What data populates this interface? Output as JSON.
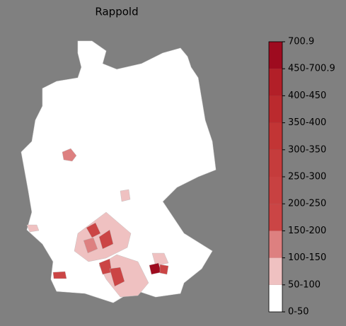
{
  "map": {
    "title": "Rappold",
    "legend": {
      "labels": [
        "0-50",
        "50-100",
        "100-150",
        "150-200",
        "200-250",
        "250-300",
        "300-350",
        "350-400",
        "400-450",
        "450-700.9",
        "700.9"
      ],
      "colors": [
        "#ffffff",
        "#efc1c1",
        "#dd8080",
        "#cb4545",
        "#c84141",
        "#c53c3c",
        "#c23535",
        "#bb2a2e",
        "#b21f28",
        "#9e0b1f"
      ]
    }
  }
}
